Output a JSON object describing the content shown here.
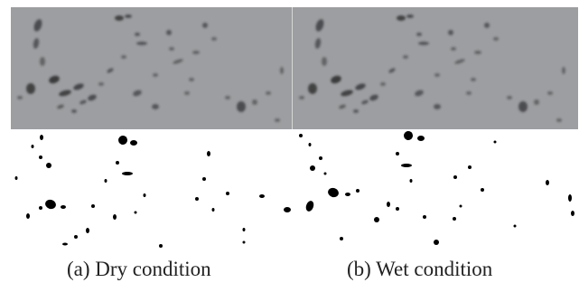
{
  "figure": {
    "panels": [
      {
        "caption": "(a) Dry condition"
      },
      {
        "caption": "(b) Wet condition"
      }
    ],
    "colors": {
      "background": "#ffffff",
      "photo_grey": "#9c9ea1",
      "spot_dark": "#2a2a2c",
      "binary_black": "#000000",
      "divider": "#d6d6d6"
    }
  }
}
